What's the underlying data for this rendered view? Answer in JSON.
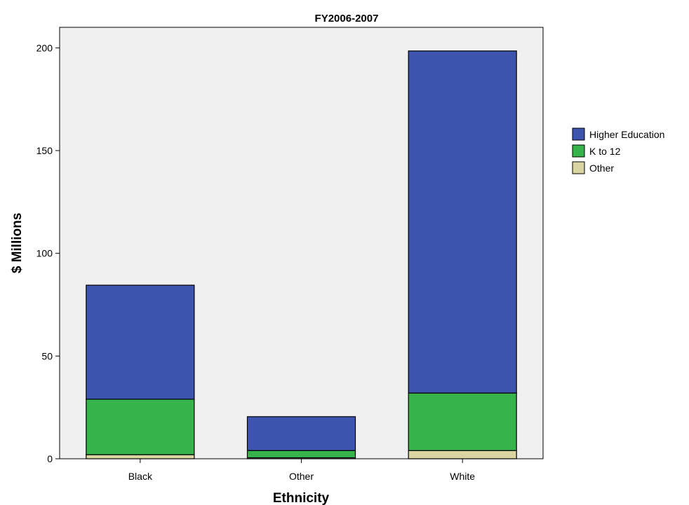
{
  "chart_data": {
    "type": "bar",
    "stacked": true,
    "title": "FY2006-2007",
    "xlabel": "Ethnicity",
    "ylabel": "$ Millions",
    "categories": [
      "Black",
      "Other",
      "White"
    ],
    "series": [
      {
        "name": "Other",
        "color": "#d9d4a0",
        "values": [
          2,
          0.5,
          4
        ]
      },
      {
        "name": "K to 12",
        "color": "#36b34a",
        "values": [
          27,
          3.5,
          28
        ]
      },
      {
        "name": "Higher Education",
        "color": "#3d55ae",
        "values": [
          55.5,
          16.5,
          166.5
        ]
      }
    ],
    "legend_order": [
      "Higher Education",
      "K to 12",
      "Other"
    ],
    "ylim": [
      0,
      210
    ],
    "yticks": [
      0,
      50,
      100,
      150,
      200
    ],
    "grid": false,
    "legend_position": "right",
    "plot_background": "#f0f0f0"
  }
}
